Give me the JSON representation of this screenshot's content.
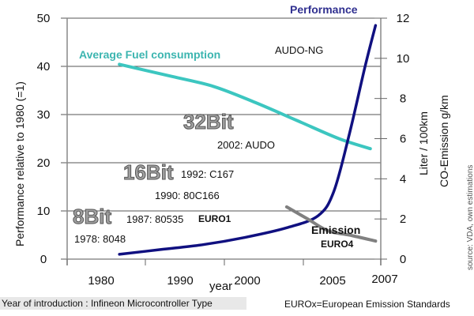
{
  "chart_data": {
    "type": "line",
    "title": "",
    "xlabel": "year",
    "x_ticks": [
      "1980",
      "1990",
      "2000",
      "2005",
      "2007"
    ],
    "xlim": [
      1977,
      2007
    ],
    "y_left": {
      "label": "Performance relative to 1980 (=1)",
      "ticks": [
        "0",
        "10",
        "20",
        "30",
        "40",
        "50"
      ],
      "ylim": [
        0,
        50
      ]
    },
    "y_right": {
      "label_line1": "Liter / 100km",
      "label_line2": "CO-Emission g/km",
      "ticks": [
        "0",
        "2",
        "4",
        "6",
        "8",
        "10",
        "12"
      ],
      "ylim": [
        0,
        12
      ]
    },
    "grid": true,
    "series": [
      {
        "name": "Average Fuel consumption",
        "axis": "right",
        "color": "#3cc6c0",
        "x": [
          1982,
          1987,
          1991,
          1995,
          1999,
          2003,
          2006
        ],
        "values": [
          9.7,
          9.1,
          8.6,
          7.8,
          6.9,
          6.0,
          5.5
        ]
      },
      {
        "name": "Performance",
        "axis": "left",
        "color": "#101080",
        "x": [
          1982,
          1986,
          1990,
          1994,
          1998,
          2001,
          2002.5,
          2004,
          2005.5,
          2006.5
        ],
        "values": [
          1,
          2,
          3,
          4.5,
          6.5,
          9,
          14,
          26,
          40,
          48.5
        ]
      },
      {
        "name": "Emission",
        "axis": "right",
        "color": "#808080",
        "x": [
          1998,
          2000,
          2002,
          2004,
          2006.5
        ],
        "values": [
          2.6,
          2.0,
          1.4,
          1.2,
          0.9
        ]
      }
    ],
    "annotations": [
      {
        "text": "AUDO-NG",
        "kind": "chip"
      },
      {
        "text": "2002: AUDO",
        "kind": "chip"
      },
      {
        "text": "1992: C167",
        "kind": "chip"
      },
      {
        "text": "1990: 80C166",
        "kind": "chip"
      },
      {
        "text": "1987: 80535",
        "kind": "chip"
      },
      {
        "text": "1978: 8048",
        "kind": "chip"
      },
      {
        "text": "32Bit",
        "kind": "bit-class"
      },
      {
        "text": "16Bit",
        "kind": "bit-class"
      },
      {
        "text": "8Bit",
        "kind": "bit-class"
      },
      {
        "text": "EURO1",
        "kind": "standard"
      },
      {
        "text": "EURO4",
        "kind": "standard"
      }
    ],
    "source": "source: VDA, own estimations"
  },
  "footer": {
    "left": "Year of introduction : Infineon  Microcontroller Type",
    "right": "EUROx=European Emission Standards"
  }
}
